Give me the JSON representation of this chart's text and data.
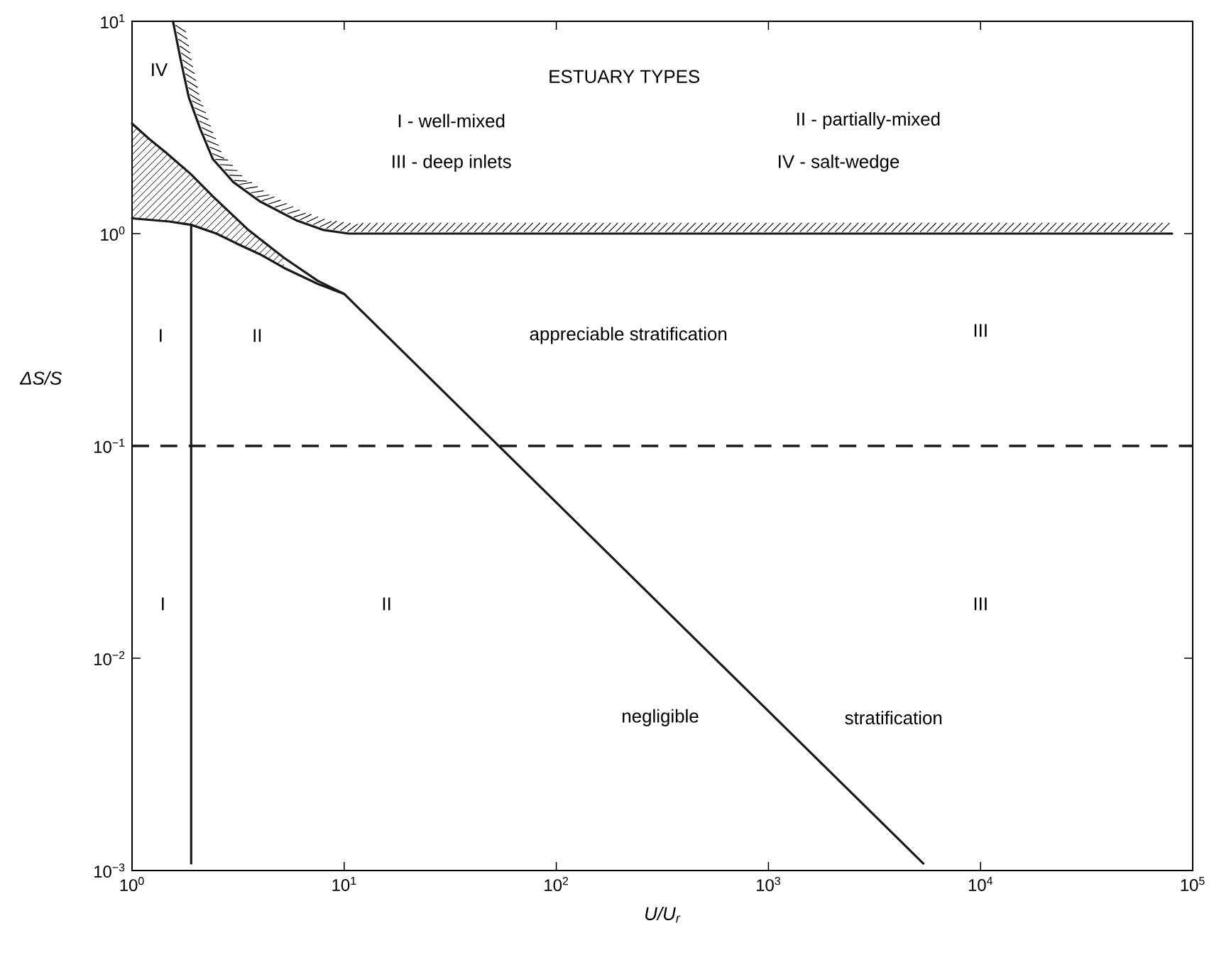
{
  "chart_data": {
    "type": "line",
    "xlabel": "U/U$_{r}$",
    "ylabel": "ΔS/S",
    "xlim": [
      1,
      100000
    ],
    "ylim": [
      0.001,
      10
    ],
    "log": "xy",
    "xticks": [
      {
        "value": 1,
        "label": "10$^{0}$"
      },
      {
        "value": 10,
        "label": "10$^{1}$"
      },
      {
        "value": 100,
        "label": "10$^{2}$"
      },
      {
        "value": 1000,
        "label": "10$^{3}$"
      },
      {
        "value": 10000,
        "label": "10$^{4}$"
      },
      {
        "value": 100000,
        "label": "10$^{5}$"
      }
    ],
    "yticks": [
      {
        "value": 0.001,
        "label": "10$^{−3}$"
      },
      {
        "value": 0.01,
        "label": "10$^{−2}$"
      },
      {
        "value": 0.1,
        "label": "10$^{−1}$"
      },
      {
        "value": 1,
        "label": "10$^{0}$"
      },
      {
        "value": 10,
        "label": "10$^{1}$"
      }
    ],
    "grid": false,
    "line_style": "solid",
    "series": [
      {
        "color": "#1a1a1a",
        "x": [
          1.56,
          1.7,
          1.85,
          2.1,
          2.4,
          3.0,
          4.0,
          6.0,
          8.0,
          10.5,
          80000
        ],
        "values": [
          10,
          6.5,
          4.4,
          3.1,
          2.25,
          1.75,
          1.42,
          1.15,
          1.04,
          1.0,
          1.0
        ]
      },
      {
        "color": "#1a1a1a",
        "x": [
          1,
          1.2,
          1.45,
          1.9,
          2.4,
          3.5,
          5.2,
          7.5,
          10
        ],
        "values": [
          3.3,
          2.8,
          2.4,
          1.9,
          1.5,
          1.05,
          0.77,
          0.6,
          0.52
        ]
      },
      {
        "color": "#1a1a1a",
        "x": [
          1,
          1.5,
          1.9,
          2.5,
          3.1,
          4.0,
          5.2,
          7.5,
          10,
          5370
        ],
        "values": [
          1.18,
          1.14,
          1.1,
          1.0,
          0.9,
          0.8,
          0.69,
          0.58,
          0.52,
          0.00108
        ]
      },
      {
        "color": "#1a1a1a",
        "x": [
          1.9,
          1.9
        ],
        "values": [
          1.1,
          0.00108
        ]
      }
    ],
    "ref_lines": [
      {
        "axis": "y",
        "value": 0.1,
        "line_style": "dashed",
        "color": "#1a1a1a"
      }
    ],
    "annotations": [
      "ESTUARY TYPES",
      "I - well-mixed",
      "II - partially-mixed",
      "III - deep inlets",
      "IV - salt-wedge",
      "IV",
      "I",
      "II",
      "appreciable stratification",
      "III",
      "I",
      "II",
      "III",
      "negligible",
      "stratification"
    ]
  }
}
